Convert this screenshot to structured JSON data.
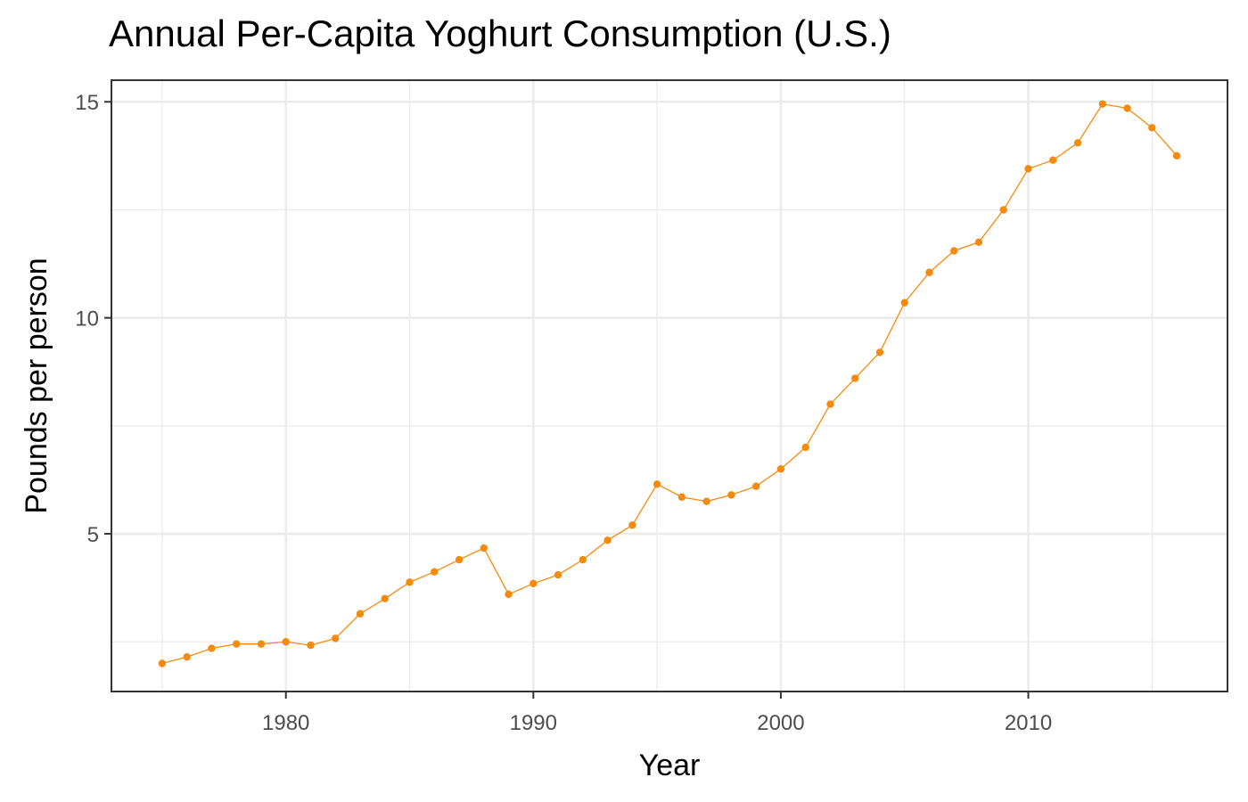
{
  "chart_data": {
    "type": "line",
    "title": "Annual Per-Capita Yoghurt Consumption (U.S.)",
    "xlabel": "Year",
    "ylabel": "Pounds per person",
    "x_ticks": [
      "1980",
      "1990",
      "2000",
      "2010"
    ],
    "y_ticks": [
      "5",
      "10",
      "15"
    ],
    "xlim": [
      1972.95,
      2018.05
    ],
    "ylim": [
      1.35,
      15.5
    ],
    "grid": true,
    "series": [
      {
        "x": [
          1975,
          1976,
          1977,
          1978,
          1979,
          1980,
          1981,
          1982,
          1983,
          1984,
          1985,
          1986,
          1987,
          1988,
          1989,
          1990,
          1991,
          1992,
          1993,
          1994,
          1995,
          1996,
          1997,
          1998,
          1999,
          2000,
          2001,
          2002,
          2003,
          2004,
          2005,
          2006,
          2007,
          2008,
          2009,
          2010,
          2011,
          2012,
          2013,
          2014,
          2015,
          2016
        ],
        "values": [
          2.0,
          2.15,
          2.35,
          2.45,
          2.45,
          2.5,
          2.42,
          2.58,
          3.15,
          3.5,
          3.88,
          4.12,
          4.4,
          4.67,
          3.6,
          3.85,
          4.05,
          4.4,
          4.85,
          5.2,
          6.15,
          5.85,
          5.75,
          5.9,
          6.1,
          6.5,
          7.0,
          8.0,
          8.6,
          9.2,
          10.35,
          11.05,
          11.55,
          11.75,
          12.5,
          13.45,
          13.65,
          14.05,
          14.95,
          14.85,
          14.4,
          13.75
        ]
      }
    ],
    "colors": {
      "line": "#f58b0e",
      "grid": "#ebebeb",
      "panel_border": "#333333",
      "tick_label": "#4d4d4d"
    }
  }
}
